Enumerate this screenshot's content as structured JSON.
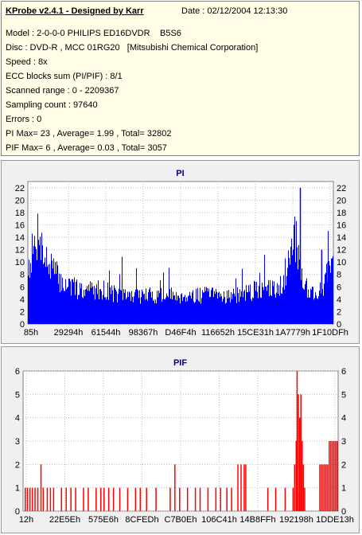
{
  "info": {
    "title": "KProbe v2.4.1 - Designed by Karr",
    "date": "Date : 02/12/2004 12:13:30",
    "model": "Model : 2-0-0-0 PHILIPS ED16DVDR",
    "firmware": "B5S6",
    "disc": "Disc : DVD-R , MCC 01RG20   [Mitsubishi Chemical Corporation]",
    "speed": "Speed : 8x",
    "ecc": "ECC blocks sum (PI/PIF) : 8/1",
    "range": "Scanned range : 0 - 2209367",
    "sampling": "Sampling count : 97640",
    "errors": "Errors : 0",
    "pi_summary": "PI Max= 23 , Average= 1.99 , Total= 32802",
    "pif_summary": "PIF Max= 6 , Average= 0.03 , Total= 3057"
  },
  "colors": {
    "pi": "#0000ff",
    "pif": "#ff0000",
    "panel": "#f0f0f0",
    "plot": "#ffffff",
    "info_bg": "#fefde6"
  },
  "chart_data": [
    {
      "type": "bar",
      "title": "PI",
      "ylim": [
        0,
        23
      ],
      "yticks": [
        0,
        2,
        4,
        6,
        8,
        10,
        12,
        14,
        16,
        18,
        20,
        22
      ],
      "xlabels": [
        "85h",
        "29294h",
        "61544h",
        "98367h",
        "D46F4h",
        "116652h",
        "15CE31h",
        "1A7779h",
        "1F10DFh"
      ],
      "color": "#0000ff",
      "grid": true,
      "profile": [
        [
          0.0,
          10
        ],
        [
          0.01,
          12
        ],
        [
          0.02,
          13
        ],
        [
          0.03,
          15
        ],
        [
          0.035,
          19
        ],
        [
          0.04,
          15
        ],
        [
          0.05,
          12
        ],
        [
          0.07,
          10
        ],
        [
          0.09,
          9
        ],
        [
          0.11,
          7
        ],
        [
          0.13,
          7
        ],
        [
          0.16,
          6
        ],
        [
          0.2,
          6
        ],
        [
          0.25,
          6
        ],
        [
          0.3,
          5
        ],
        [
          0.4,
          5
        ],
        [
          0.5,
          5
        ],
        [
          0.6,
          5
        ],
        [
          0.7,
          5
        ],
        [
          0.75,
          6
        ],
        [
          0.8,
          6
        ],
        [
          0.83,
          7
        ],
        [
          0.85,
          9
        ],
        [
          0.86,
          12
        ],
        [
          0.87,
          15
        ],
        [
          0.875,
          16
        ],
        [
          0.88,
          14
        ],
        [
          0.89,
          11
        ],
        [
          0.9,
          8
        ],
        [
          0.92,
          6
        ],
        [
          0.95,
          5
        ],
        [
          0.97,
          7
        ],
        [
          0.98,
          9
        ],
        [
          0.99,
          10
        ],
        [
          1.0,
          10
        ]
      ],
      "spikes": [
        [
          0.89,
          22
        ],
        [
          0.96,
          12
        ],
        [
          0.98,
          10
        ]
      ]
    },
    {
      "type": "bar",
      "title": "PIF",
      "ylim": [
        0,
        6
      ],
      "yticks": [
        0,
        1,
        2,
        3,
        4,
        5,
        6
      ],
      "xlabels": [
        "12h",
        "22E5Eh",
        "575E6h",
        "8CFEDh",
        "C7B0Eh",
        "106C41h",
        "14B8FFh",
        "192198h",
        "1DDE13h"
      ],
      "color": "#ff0000",
      "grid": true,
      "bars": [
        [
          0.005,
          1
        ],
        [
          0.012,
          1
        ],
        [
          0.02,
          1
        ],
        [
          0.028,
          1
        ],
        [
          0.036,
          1
        ],
        [
          0.045,
          1
        ],
        [
          0.055,
          2
        ],
        [
          0.062,
          1
        ],
        [
          0.075,
          1
        ],
        [
          0.085,
          1
        ],
        [
          0.095,
          1
        ],
        [
          0.12,
          1
        ],
        [
          0.135,
          1
        ],
        [
          0.15,
          1
        ],
        [
          0.165,
          1
        ],
        [
          0.19,
          1
        ],
        [
          0.205,
          1
        ],
        [
          0.23,
          1
        ],
        [
          0.245,
          1
        ],
        [
          0.255,
          1
        ],
        [
          0.27,
          1
        ],
        [
          0.285,
          1
        ],
        [
          0.305,
          1
        ],
        [
          0.33,
          1
        ],
        [
          0.355,
          1
        ],
        [
          0.37,
          1
        ],
        [
          0.39,
          1
        ],
        [
          0.42,
          1
        ],
        [
          0.465,
          1
        ],
        [
          0.48,
          2
        ],
        [
          0.495,
          1
        ],
        [
          0.52,
          1
        ],
        [
          0.545,
          1
        ],
        [
          0.56,
          1
        ],
        [
          0.585,
          1
        ],
        [
          0.61,
          1
        ],
        [
          0.625,
          1
        ],
        [
          0.645,
          1
        ],
        [
          0.66,
          1
        ],
        [
          0.68,
          2
        ],
        [
          0.69,
          2
        ],
        [
          0.7,
          2
        ],
        [
          0.705,
          2
        ],
        [
          0.775,
          1
        ],
        [
          0.8,
          1
        ],
        [
          0.83,
          1
        ],
        [
          0.855,
          1
        ],
        [
          0.86,
          2
        ],
        [
          0.865,
          3
        ],
        [
          0.868,
          6
        ],
        [
          0.872,
          5
        ],
        [
          0.876,
          4
        ],
        [
          0.88,
          5
        ],
        [
          0.884,
          3
        ],
        [
          0.888,
          2
        ],
        [
          0.892,
          1
        ],
        [
          0.94,
          2
        ],
        [
          0.945,
          2
        ],
        [
          0.95,
          2
        ],
        [
          0.955,
          2
        ],
        [
          0.96,
          2
        ],
        [
          0.965,
          2
        ],
        [
          0.97,
          3
        ],
        [
          0.975,
          3
        ],
        [
          0.98,
          3
        ],
        [
          0.985,
          3
        ],
        [
          0.99,
          3
        ],
        [
          0.995,
          3
        ]
      ]
    }
  ]
}
